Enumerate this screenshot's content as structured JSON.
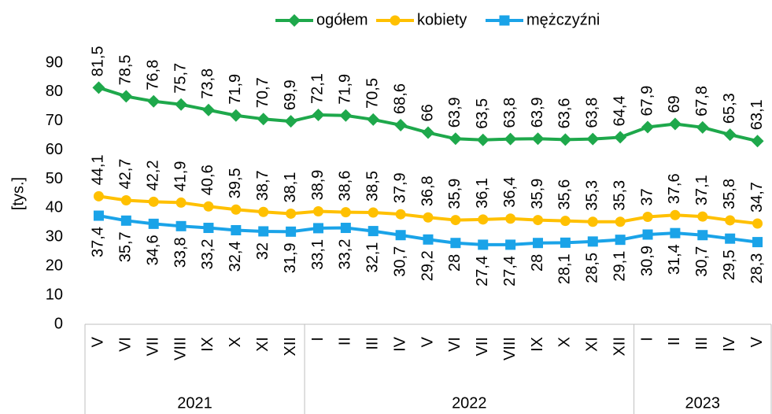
{
  "chart_data": {
    "type": "line",
    "y_label": "[tys.]",
    "categories": [
      "V",
      "VI",
      "VII",
      "VIII",
      "IX",
      "X",
      "XI",
      "XII",
      "I",
      "II",
      "III",
      "IV",
      "V",
      "VI",
      "VII",
      "VIII",
      "IX",
      "X",
      "XI",
      "XII",
      "I",
      "II",
      "III",
      "IV",
      "V"
    ],
    "x_groups": [
      {
        "label": "2021",
        "count": 8
      },
      {
        "label": "2022",
        "count": 12
      },
      {
        "label": "2023",
        "count": 5
      }
    ],
    "ylim": [
      0,
      90
    ],
    "yticks": [
      0,
      10,
      20,
      30,
      40,
      50,
      60,
      70,
      80,
      90
    ],
    "grid": false,
    "legend": "top",
    "series": [
      {
        "name": "ogółem",
        "color": "#1ea84b",
        "marker": "diamond",
        "label_position": "above",
        "values": [
          81.5,
          78.5,
          76.8,
          75.7,
          73.8,
          71.9,
          70.7,
          69.9,
          72.1,
          71.9,
          70.5,
          68.6,
          66,
          63.9,
          63.5,
          63.8,
          63.9,
          63.6,
          63.8,
          64.4,
          67.9,
          69,
          67.8,
          65.3,
          63.1
        ],
        "value_labels": [
          "81,5",
          "78,5",
          "76,8",
          "75,7",
          "73,8",
          "71,9",
          "70,7",
          "69,9",
          "72,1",
          "71,9",
          "70,5",
          "68,6",
          "66",
          "63,9",
          "63,5",
          "63,8",
          "63,9",
          "63,6",
          "63,8",
          "64,4",
          "67,9",
          "69",
          "67,8",
          "65,3",
          "63,1"
        ]
      },
      {
        "name": "kobiety",
        "color": "#ffc000",
        "marker": "circle",
        "label_position": "above",
        "values": [
          44.1,
          42.7,
          42.2,
          41.9,
          40.6,
          39.5,
          38.7,
          38.1,
          38.9,
          38.6,
          38.5,
          37.9,
          36.8,
          35.9,
          36.1,
          36.4,
          35.9,
          35.6,
          35.3,
          35.3,
          37,
          37.6,
          37.1,
          35.8,
          34.7
        ],
        "value_labels": [
          "44,1",
          "42,7",
          "42,2",
          "41,9",
          "40,6",
          "39,5",
          "38,7",
          "38,1",
          "38,9",
          "38,6",
          "38,5",
          "37,9",
          "36,8",
          "35,9",
          "36,1",
          "36,4",
          "35,9",
          "35,6",
          "35,3",
          "35,3",
          "37",
          "37,6",
          "37,1",
          "35,8",
          "34,7"
        ]
      },
      {
        "name": "mężczyźni",
        "color": "#1aa3e8",
        "marker": "square",
        "label_position": "below",
        "values": [
          37.4,
          35.7,
          34.6,
          33.8,
          33.2,
          32.4,
          32,
          31.9,
          33.1,
          33.2,
          32.1,
          30.7,
          29.2,
          28,
          27.4,
          27.4,
          28,
          28.1,
          28.5,
          29.1,
          30.9,
          31.4,
          30.7,
          29.5,
          28.3
        ],
        "value_labels": [
          "37,4",
          "35,7",
          "34,6",
          "33,8",
          "33,2",
          "32,4",
          "32",
          "31,9",
          "33,1",
          "33,2",
          "32,1",
          "30,7",
          "29,2",
          "28",
          "27,4",
          "27,4",
          "28",
          "28,1",
          "28,5",
          "29,1",
          "30,9",
          "31,4",
          "30,7",
          "29,5",
          "28,3"
        ]
      }
    ]
  }
}
